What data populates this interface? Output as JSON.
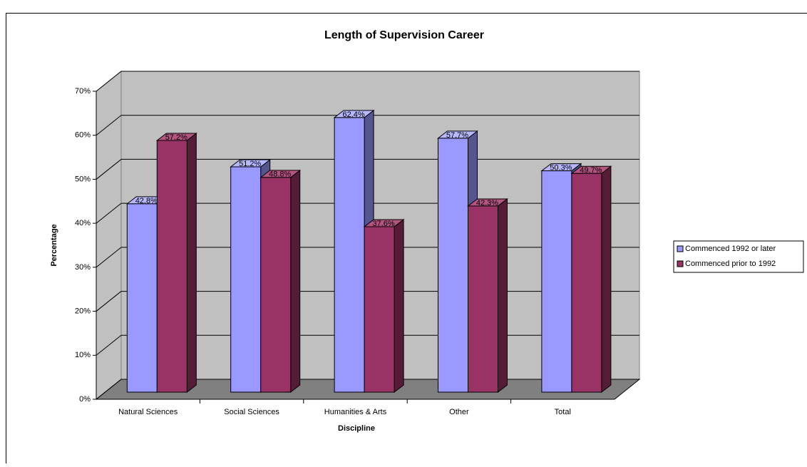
{
  "chart_data": {
    "type": "bar3d",
    "title": "Length of Supervision Career",
    "x_label": "Discipline",
    "y_label": "Percentage",
    "categories": [
      "Natural Sciences",
      "Social Sciences",
      "Humanities & Arts",
      "Other",
      "Total"
    ],
    "series": [
      {
        "name": "Commenced 1992 or later",
        "color": "#9999ff",
        "side": "#55558f",
        "top": "#b8b8ff",
        "values": [
          42.8,
          51.2,
          62.4,
          57.7,
          50.3
        ],
        "value_labels": [
          "42.8%",
          "51.2%",
          "62.4%",
          "57.7%",
          "50.3%"
        ]
      },
      {
        "name": "Commenced prior to 1992",
        "color": "#993366",
        "side": "#551c38",
        "top": "#b35580",
        "values": [
          57.2,
          48.8,
          37.6,
          42.3,
          49.7
        ],
        "value_labels": [
          "57.2%",
          "48.8%",
          "37.6%",
          "42.3%",
          "49.7%"
        ]
      }
    ],
    "ylim": [
      0,
      70
    ],
    "yticks": [
      {
        "value": 0,
        "label": "0%"
      },
      {
        "value": 10,
        "label": "10%"
      },
      {
        "value": 20,
        "label": "20%"
      },
      {
        "value": 30,
        "label": "30%"
      },
      {
        "value": 40,
        "label": "40%"
      },
      {
        "value": 50,
        "label": "50%"
      },
      {
        "value": 60,
        "label": "60%"
      },
      {
        "value": 70,
        "label": "70%"
      }
    ],
    "grid": true,
    "legend": "right"
  }
}
